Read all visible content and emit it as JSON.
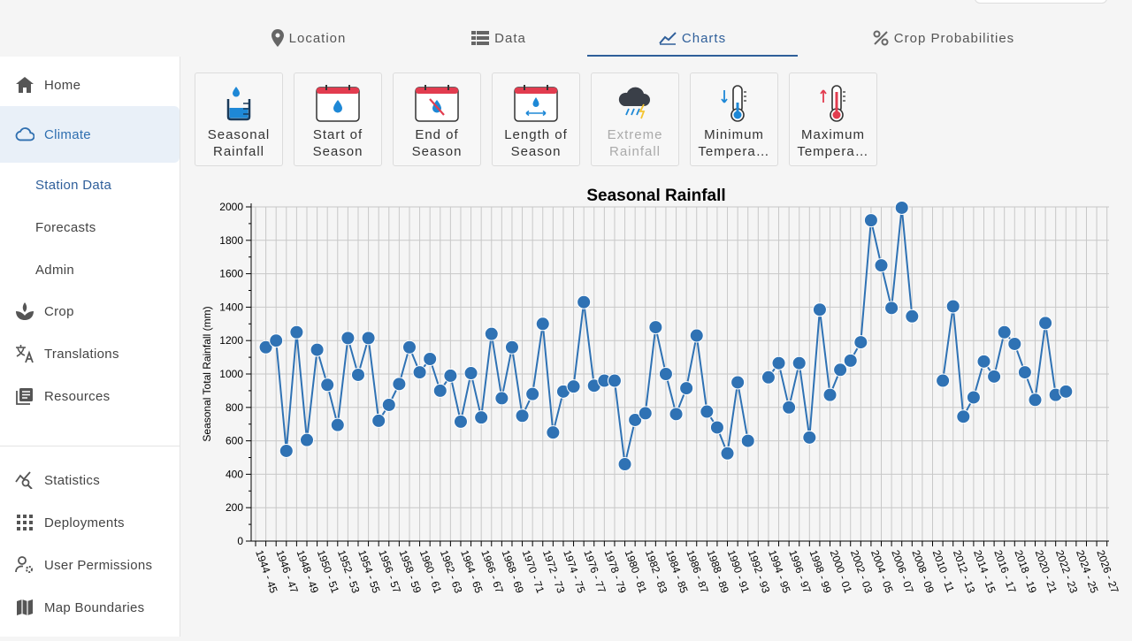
{
  "tabs": [
    {
      "label": "Location",
      "icon": "location-pin-icon"
    },
    {
      "label": "Data",
      "icon": "table-list-icon"
    },
    {
      "label": "Charts",
      "icon": "line-chart-icon",
      "active": true
    },
    {
      "label": "Crop Probabilities",
      "icon": "percent-icon"
    }
  ],
  "sidebar": {
    "items": [
      {
        "label": "Home",
        "icon": "home-icon"
      },
      {
        "label": "Climate",
        "icon": "cloud-icon",
        "active": true
      },
      {
        "label": "Crop",
        "icon": "sprout-icon"
      },
      {
        "label": "Translations",
        "icon": "translate-icon"
      },
      {
        "label": "Resources",
        "icon": "library-books-icon"
      },
      {
        "label": "Statistics",
        "icon": "query-stats-icon"
      },
      {
        "label": "Deployments",
        "icon": "apps-grid-icon"
      },
      {
        "label": "User Permissions",
        "icon": "user-settings-icon"
      },
      {
        "label": "Map Boundaries",
        "icon": "map-icon"
      }
    ],
    "subitems": [
      {
        "label": "Station Data",
        "active": true
      },
      {
        "label": "Forecasts"
      },
      {
        "label": "Admin"
      }
    ]
  },
  "cards": [
    {
      "label": "Seasonal\nRainfall",
      "icon": "seasonal-rainfall-icon"
    },
    {
      "label": "Start of\nSeason",
      "icon": "calendar-drop-icon"
    },
    {
      "label": "End of\nSeason",
      "icon": "calendar-no-drop-icon"
    },
    {
      "label": "Length of\nSeason",
      "icon": "calendar-length-icon"
    },
    {
      "label": "Extreme\nRainfall",
      "icon": "storm-cloud-icon",
      "disabled": true
    },
    {
      "label": "Minimum\nTempera…",
      "icon": "thermometer-min-icon"
    },
    {
      "label": "Maximum\nTempera…",
      "icon": "thermometer-max-icon"
    }
  ],
  "colors": {
    "accent": "#2f5f9a",
    "series": "#2f72b4",
    "active_bg": "#e9f0f8"
  },
  "chart_data": {
    "type": "line",
    "title": "Seasonal Rainfall",
    "xlabel": "",
    "ylabel": "Seasonal Total Rainfall (mm)",
    "ylim": [
      0,
      2000
    ],
    "y_ticks": [
      0,
      200,
      400,
      600,
      800,
      1000,
      1200,
      1400,
      1600,
      1800,
      2000
    ],
    "grid": true,
    "markers": true,
    "x_tick_labels": [
      "1944 - 45",
      "1946 - 47",
      "1948 - 49",
      "1950 - 51",
      "1952 - 53",
      "1954 - 55",
      "1956 - 57",
      "1958 - 59",
      "1960 - 61",
      "1962 - 63",
      "1964 - 65",
      "1966 - 67",
      "1968 - 69",
      "1970 - 71",
      "1972 - 73",
      "1974 - 75",
      "1976 - 77",
      "1978 - 79",
      "1980 - 81",
      "1982 - 83",
      "1984 - 85",
      "1986 - 87",
      "1988 - 89",
      "1990 - 91",
      "1992 - 93",
      "1994 - 95",
      "1996 - 97",
      "1998 - 99",
      "2000 - 01",
      "2002 - 03",
      "2004 - 05",
      "2006 - 07",
      "2008 - 09",
      "2010 - 11",
      "2012 - 13",
      "2014 - 15",
      "2016 - 17",
      "2018 - 19",
      "2020 - 21",
      "2022 - 23",
      "2024 - 25",
      "2026 - 27"
    ],
    "series": [
      {
        "segments": [
          {
            "x": [
              "1945 - 46",
              "1946 - 47",
              "1947 - 48",
              "1948 - 49",
              "1949 - 50",
              "1950 - 51",
              "1951 - 52",
              "1952 - 53",
              "1953 - 54",
              "1954 - 55",
              "1955 - 56",
              "1956 - 57",
              "1957 - 58",
              "1958 - 59",
              "1959 - 60",
              "1960 - 61",
              "1961 - 62",
              "1962 - 63",
              "1963 - 64",
              "1964 - 65",
              "1965 - 66",
              "1966 - 67",
              "1967 - 68",
              "1968 - 69",
              "1969 - 70",
              "1970 - 71",
              "1971 - 72",
              "1972 - 73",
              "1973 - 74",
              "1974 - 75",
              "1975 - 76",
              "1976 - 77",
              "1977 - 78",
              "1978 - 79",
              "1979 - 80",
              "1980 - 81",
              "1981 - 82",
              "1982 - 83",
              "1983 - 84",
              "1984 - 85",
              "1985 - 86",
              "1986 - 87",
              "1987 - 88",
              "1988 - 89",
              "1989 - 90",
              "1990 - 91",
              "1991 - 92",
              "1992 - 93"
            ],
            "y": [
              1160,
              1200,
              540,
              1250,
              605,
              1145,
              935,
              695,
              1215,
              995,
              1215,
              720,
              815,
              940,
              1160,
              1010,
              1090,
              900,
              990,
              715,
              1005,
              740,
              1240,
              855,
              1160,
              750,
              880,
              1300,
              650,
              895,
              925,
              1430,
              930,
              960,
              960,
              460,
              725,
              765,
              1280,
              1000,
              760,
              915,
              1230,
              775,
              680,
              525,
              950,
              600
            ]
          },
          {
            "x": [
              "1994 - 95",
              "1995 - 96",
              "1996 - 97",
              "1997 - 98",
              "1998 - 99",
              "1999 - 00",
              "2000 - 01",
              "2001 - 02",
              "2002 - 03",
              "2003 - 04",
              "2004 - 05",
              "2005 - 06",
              "2006 - 07",
              "2007 - 08",
              "2008 - 09"
            ],
            "y": [
              980,
              1065,
              800,
              1065,
              620,
              1385,
              875,
              1025,
              1080,
              1190,
              1920,
              1650,
              1395,
              1995,
              1345
            ]
          },
          {
            "x": [
              "2011 - 12",
              "2012 - 13",
              "2013 - 14",
              "2014 - 15",
              "2015 - 16",
              "2016 - 17",
              "2017 - 18",
              "2018 - 19",
              "2019 - 20",
              "2020 - 21",
              "2021 - 22",
              "2022 - 23",
              "2023 - 24"
            ],
            "y": [
              960,
              1405,
              745,
              860,
              1075,
              985,
              1250,
              1180,
              1010,
              845,
              1305,
              875,
              895
            ]
          }
        ]
      }
    ]
  }
}
